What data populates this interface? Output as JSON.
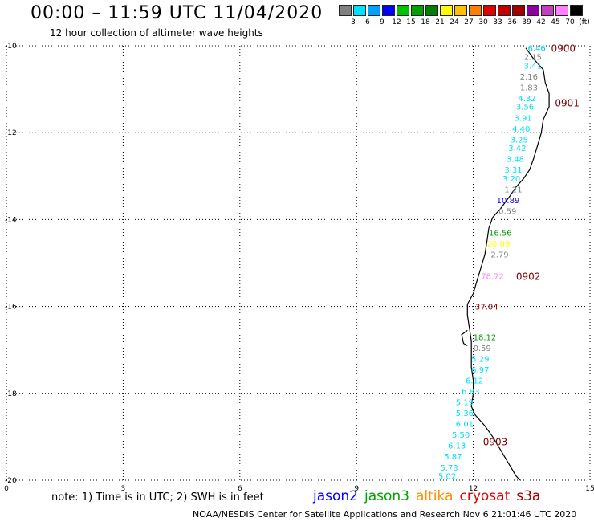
{
  "header": {
    "title": "00:00 – 11:59 UTC 11/04/2020",
    "subtitle": "12 hour collection of altimeter wave heights"
  },
  "scale": {
    "colors": [
      "#808080",
      "#00e0ff",
      "#00a0ff",
      "#0000ff",
      "#00c000",
      "#00a000",
      "#008000",
      "#ffff00",
      "#ffc000",
      "#ff8000",
      "#e00000",
      "#c00000",
      "#a00000",
      "#9000a0",
      "#c040c0",
      "#ff80ff",
      "#000000"
    ],
    "labels": [
      "3",
      "6",
      "9",
      "12",
      "15",
      "18",
      "21",
      "24",
      "27",
      "30",
      "33",
      "36",
      "39",
      "42",
      "45",
      "70",
      "(ft)"
    ]
  },
  "axes": {
    "y_labels": [
      "-10",
      "-12",
      "-14",
      "-16",
      "-18",
      "-20"
    ],
    "x_labels": [
      "0",
      "3",
      "6",
      "9",
      "12",
      "15"
    ]
  },
  "track": {
    "points": [
      [
        13.35,
        -10.05
      ],
      [
        13.55,
        -10.3
      ],
      [
        13.8,
        -10.55
      ],
      [
        13.85,
        -10.85
      ],
      [
        13.95,
        -11.1
      ],
      [
        13.95,
        -11.4
      ],
      [
        13.8,
        -11.7
      ],
      [
        13.75,
        -12.0
      ],
      [
        13.65,
        -12.3
      ],
      [
        13.55,
        -12.6
      ],
      [
        13.45,
        -12.85
      ],
      [
        13.3,
        -13.05
      ],
      [
        13.1,
        -13.25
      ],
      [
        12.95,
        -13.45
      ],
      [
        12.7,
        -13.75
      ],
      [
        12.5,
        -13.95
      ],
      [
        12.4,
        -14.2
      ],
      [
        12.35,
        -14.5
      ],
      [
        12.3,
        -14.8
      ],
      [
        12.2,
        -15.1
      ],
      [
        12.1,
        -15.4
      ],
      [
        12.0,
        -15.7
      ],
      [
        11.85,
        -15.95
      ],
      [
        11.85,
        -16.2
      ],
      [
        11.9,
        -16.5
      ],
      [
        11.95,
        -16.8
      ],
      [
        11.95,
        -17.1
      ],
      [
        11.95,
        -17.4
      ],
      [
        12.0,
        -17.7
      ],
      [
        12.0,
        -18.0
      ],
      [
        11.95,
        -18.3
      ],
      [
        12.05,
        -18.5
      ],
      [
        12.3,
        -18.75
      ],
      [
        12.5,
        -19.0
      ],
      [
        12.7,
        -19.3
      ],
      [
        12.9,
        -19.6
      ],
      [
        13.1,
        -19.9
      ],
      [
        13.2,
        -20.0
      ]
    ],
    "loop_points": [
      [
        11.85,
        -16.55
      ],
      [
        11.7,
        -16.65
      ],
      [
        11.75,
        -16.85
      ],
      [
        11.85,
        -16.9
      ]
    ]
  },
  "time_labels": [
    {
      "time": "0900",
      "lon": 14.0,
      "lat": -10.05
    },
    {
      "time": "0901",
      "lon": 14.1,
      "lat": -11.3
    },
    {
      "time": "0902",
      "lon": 13.1,
      "lat": -15.3
    },
    {
      "time": "0903",
      "lon": 12.25,
      "lat": -19.1
    }
  ],
  "readings": [
    {
      "value": "6.46",
      "lon": 13.4,
      "lat": -10.05,
      "color": "#00c8ff"
    },
    {
      "value": "2.15",
      "lon": 13.3,
      "lat": -10.25,
      "color": "#808080"
    },
    {
      "value": "3.41",
      "lon": 13.3,
      "lat": -10.45,
      "color": "#00e0ff"
    },
    {
      "value": "2.16",
      "lon": 13.2,
      "lat": -10.7,
      "color": "#808080"
    },
    {
      "value": "1.83",
      "lon": 13.2,
      "lat": -10.95,
      "color": "#808080"
    },
    {
      "value": "4.32",
      "lon": 13.15,
      "lat": -11.2,
      "color": "#00e0ff"
    },
    {
      "value": "3.56",
      "lon": 13.1,
      "lat": -11.4,
      "color": "#00e0ff"
    },
    {
      "value": "3.91",
      "lon": 13.05,
      "lat": -11.65,
      "color": "#00e0ff"
    },
    {
      "value": "4.40",
      "lon": 13.0,
      "lat": -11.9,
      "color": "#00e0ff"
    },
    {
      "value": "3.25",
      "lon": 12.95,
      "lat": -12.15,
      "color": "#00e0ff"
    },
    {
      "value": "3.42",
      "lon": 12.9,
      "lat": -12.35,
      "color": "#00e0ff"
    },
    {
      "value": "3.48",
      "lon": 12.85,
      "lat": -12.6,
      "color": "#00e0ff"
    },
    {
      "value": "3.31",
      "lon": 12.8,
      "lat": -12.85,
      "color": "#00e0ff"
    },
    {
      "value": "3.20",
      "lon": 12.75,
      "lat": -13.05,
      "color": "#00e0ff"
    },
    {
      "value": "1.21",
      "lon": 12.8,
      "lat": -13.3,
      "color": "#808080"
    },
    {
      "value": "10.89",
      "lon": 12.6,
      "lat": -13.55,
      "color": "#0000ff"
    },
    {
      "value": "0.59",
      "lon": 12.65,
      "lat": -13.8,
      "color": "#808080"
    },
    {
      "value": "16.56",
      "lon": 12.4,
      "lat": -14.3,
      "color": "#00a000"
    },
    {
      "value": "20.09",
      "lon": 12.35,
      "lat": -14.55,
      "color": "#ffff00"
    },
    {
      "value": "2.79",
      "lon": 12.45,
      "lat": -14.8,
      "color": "#808080"
    },
    {
      "value": "78.72",
      "lon": 12.2,
      "lat": -15.3,
      "color": "#ff80ff"
    },
    {
      "value": "37.04",
      "lon": 12.05,
      "lat": -16.0,
      "color": "#a00000"
    },
    {
      "value": "18.12",
      "lon": 12.0,
      "lat": -16.7,
      "color": "#00a000"
    },
    {
      "value": "0.59",
      "lon": 12.0,
      "lat": -16.95,
      "color": "#808080"
    },
    {
      "value": "5.29",
      "lon": 11.95,
      "lat": -17.2,
      "color": "#00e0ff"
    },
    {
      "value": "6.97",
      "lon": 11.95,
      "lat": -17.45,
      "color": "#00e0ff"
    },
    {
      "value": "6.12",
      "lon": 11.8,
      "lat": -17.7,
      "color": "#00e0ff"
    },
    {
      "value": "6.83",
      "lon": 11.7,
      "lat": -17.95,
      "color": "#00e0ff"
    },
    {
      "value": "5.19",
      "lon": 11.55,
      "lat": -18.2,
      "color": "#00e0ff"
    },
    {
      "value": "5.36",
      "lon": 11.55,
      "lat": -18.45,
      "color": "#00e0ff"
    },
    {
      "value": "6.01",
      "lon": 11.55,
      "lat": -18.7,
      "color": "#00e0ff"
    },
    {
      "value": "5.50",
      "lon": 11.45,
      "lat": -18.95,
      "color": "#00e0ff"
    },
    {
      "value": "6.13",
      "lon": 11.35,
      "lat": -19.2,
      "color": "#00e0ff"
    },
    {
      "value": "5.87",
      "lon": 11.25,
      "lat": -19.45,
      "color": "#00e0ff"
    },
    {
      "value": "5.73",
      "lon": 11.15,
      "lat": -19.7,
      "color": "#00e0ff"
    },
    {
      "value": "5.02",
      "lon": 11.1,
      "lat": -19.9,
      "color": "#00e0ff"
    }
  ],
  "footer": {
    "note": "note:  1) Time is in UTC;  2) SWH is in feet",
    "credit": "NOAA/NESDIS Center for Satellite Applications and Research     Nov  6 21:01:46 UTC 2020"
  },
  "legend": [
    {
      "name": "jason2",
      "color": "#0000ff"
    },
    {
      "name": "jason3",
      "color": "#00a000"
    },
    {
      "name": "altika",
      "color": "#ff9000"
    },
    {
      "name": "cryosat",
      "color": "#e00000"
    },
    {
      "name": "s3a",
      "color": "#a00000"
    }
  ]
}
